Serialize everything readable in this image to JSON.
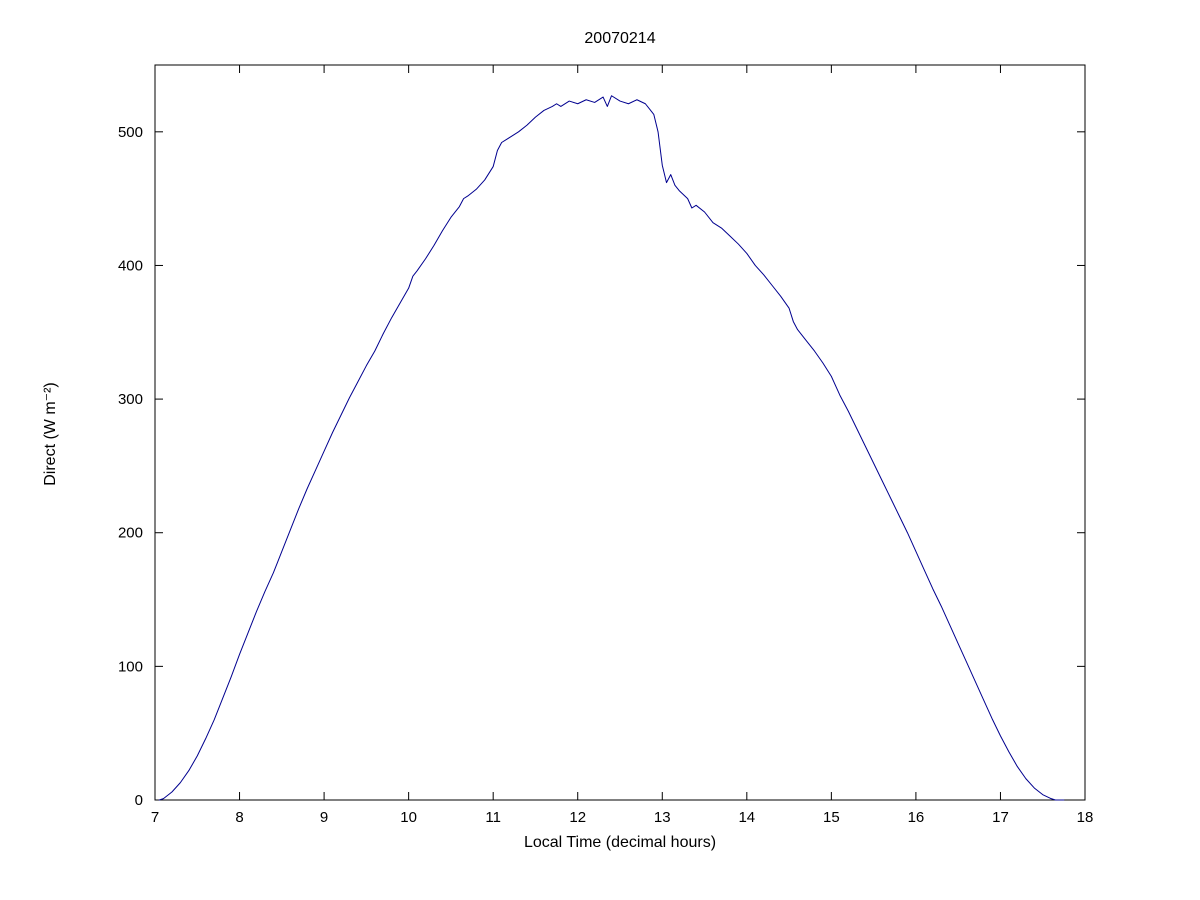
{
  "figure": {
    "background": "#ffffff",
    "axis_color": "#000000"
  },
  "chart_data": {
    "type": "line",
    "title": "20070214",
    "xlabel": "Local Time (decimal hours)",
    "ylabel": "Direct (W m⁻²)",
    "xlim": [
      7,
      18
    ],
    "ylim": [
      0,
      550
    ],
    "x_ticks": [
      7,
      8,
      9,
      10,
      11,
      12,
      13,
      14,
      15,
      16,
      17,
      18
    ],
    "y_ticks": [
      0,
      100,
      200,
      300,
      400,
      500
    ],
    "grid": false,
    "legend": null,
    "line_color": "#00008f",
    "series": [
      {
        "name": "Direct",
        "x": [
          7.05,
          7.1,
          7.2,
          7.3,
          7.4,
          7.5,
          7.6,
          7.7,
          7.8,
          7.9,
          8.0,
          8.1,
          8.2,
          8.3,
          8.4,
          8.45,
          8.5,
          8.6,
          8.7,
          8.8,
          8.9,
          9.0,
          9.1,
          9.2,
          9.3,
          9.4,
          9.5,
          9.6,
          9.7,
          9.8,
          9.9,
          10.0,
          10.05,
          10.1,
          10.2,
          10.3,
          10.4,
          10.5,
          10.6,
          10.65,
          10.7,
          10.8,
          10.9,
          11.0,
          11.05,
          11.1,
          11.2,
          11.3,
          11.4,
          11.5,
          11.6,
          11.7,
          11.75,
          11.8,
          11.9,
          12.0,
          12.1,
          12.2,
          12.3,
          12.35,
          12.4,
          12.5,
          12.6,
          12.7,
          12.8,
          12.85,
          12.9,
          12.95,
          13.0,
          13.05,
          13.1,
          13.15,
          13.2,
          13.3,
          13.35,
          13.4,
          13.5,
          13.6,
          13.7,
          13.8,
          13.9,
          14.0,
          14.1,
          14.2,
          14.3,
          14.4,
          14.5,
          14.55,
          14.6,
          14.7,
          14.8,
          14.9,
          15.0,
          15.1,
          15.2,
          15.3,
          15.4,
          15.5,
          15.6,
          15.7,
          15.8,
          15.9,
          16.0,
          16.1,
          16.2,
          16.3,
          16.4,
          16.5,
          16.6,
          16.7,
          16.8,
          16.9,
          17.0,
          17.1,
          17.2,
          17.3,
          17.4,
          17.5,
          17.6,
          17.65,
          17.75
        ],
        "y": [
          0,
          1,
          6,
          13,
          22,
          33,
          46,
          60,
          76,
          92,
          109,
          125,
          141,
          156,
          170,
          178,
          186,
          202,
          218,
          233,
          247,
          261,
          275,
          288,
          301,
          313,
          325,
          336,
          349,
          361,
          372,
          383,
          392,
          396,
          405,
          415,
          426,
          436,
          444,
          450,
          452,
          457,
          464,
          474,
          486,
          492,
          496,
          500,
          505,
          511,
          516,
          519,
          521,
          519,
          523,
          521,
          524,
          522,
          526,
          519,
          527,
          523,
          521,
          524,
          521,
          517,
          513,
          500,
          475,
          462,
          468,
          460,
          456,
          450,
          443,
          445,
          440,
          432,
          428,
          422,
          416,
          409,
          400,
          393,
          385,
          377,
          368,
          358,
          352,
          344,
          336,
          327,
          317,
          303,
          291,
          278,
          265,
          252,
          239,
          226,
          213,
          200,
          186,
          172,
          158,
          145,
          131,
          117,
          103,
          89,
          75,
          61,
          48,
          36,
          25,
          16,
          9,
          4,
          1,
          0,
          0
        ]
      }
    ]
  }
}
